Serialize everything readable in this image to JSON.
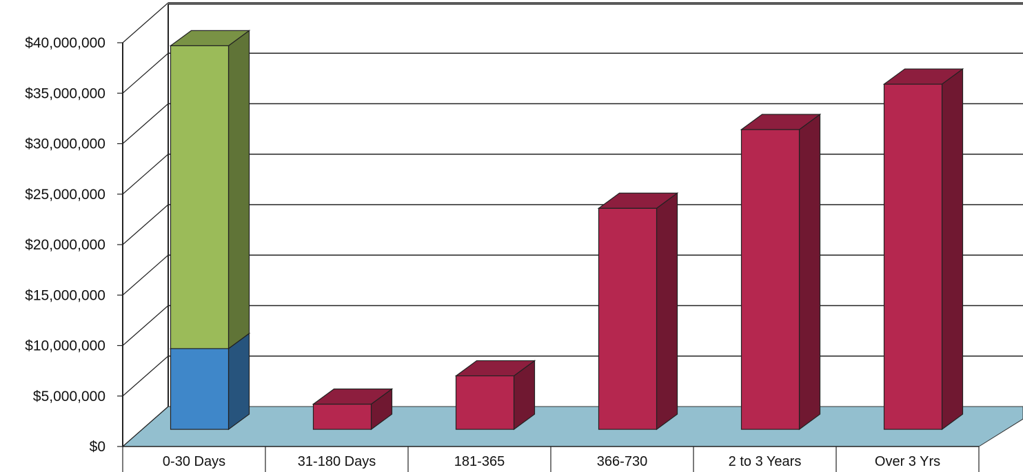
{
  "chart_data": {
    "type": "bar",
    "stacked": true,
    "three_d": true,
    "title": "",
    "xlabel": "",
    "ylabel": "",
    "ylim": [
      0,
      40000000
    ],
    "y_tick_step": 5000000,
    "y_tick_labels": [
      "$0",
      "$5,000,000",
      "$10,000,000",
      "$15,000,000",
      "$20,000,000",
      "$25,000,000",
      "$30,000,000",
      "$35,000,000",
      "$40,000,000"
    ],
    "categories": [
      "0-30 Days",
      "31-180 Days",
      "181-365",
      "366-730",
      "2 to 3 Years",
      "Over 3 Yrs"
    ],
    "series": [
      {
        "values": [
          8000000,
          0,
          0,
          0,
          0,
          0
        ],
        "color": "#3f87c9"
      },
      {
        "values": [
          30000000,
          0,
          0,
          0,
          0,
          0
        ],
        "color": "#9bbb59"
      },
      {
        "values": [
          0,
          2500000,
          5300000,
          21900000,
          29700000,
          34200000
        ],
        "color": "#b5274f"
      }
    ],
    "grid": true,
    "legend": "none",
    "floor_color": "#93bfcf"
  }
}
